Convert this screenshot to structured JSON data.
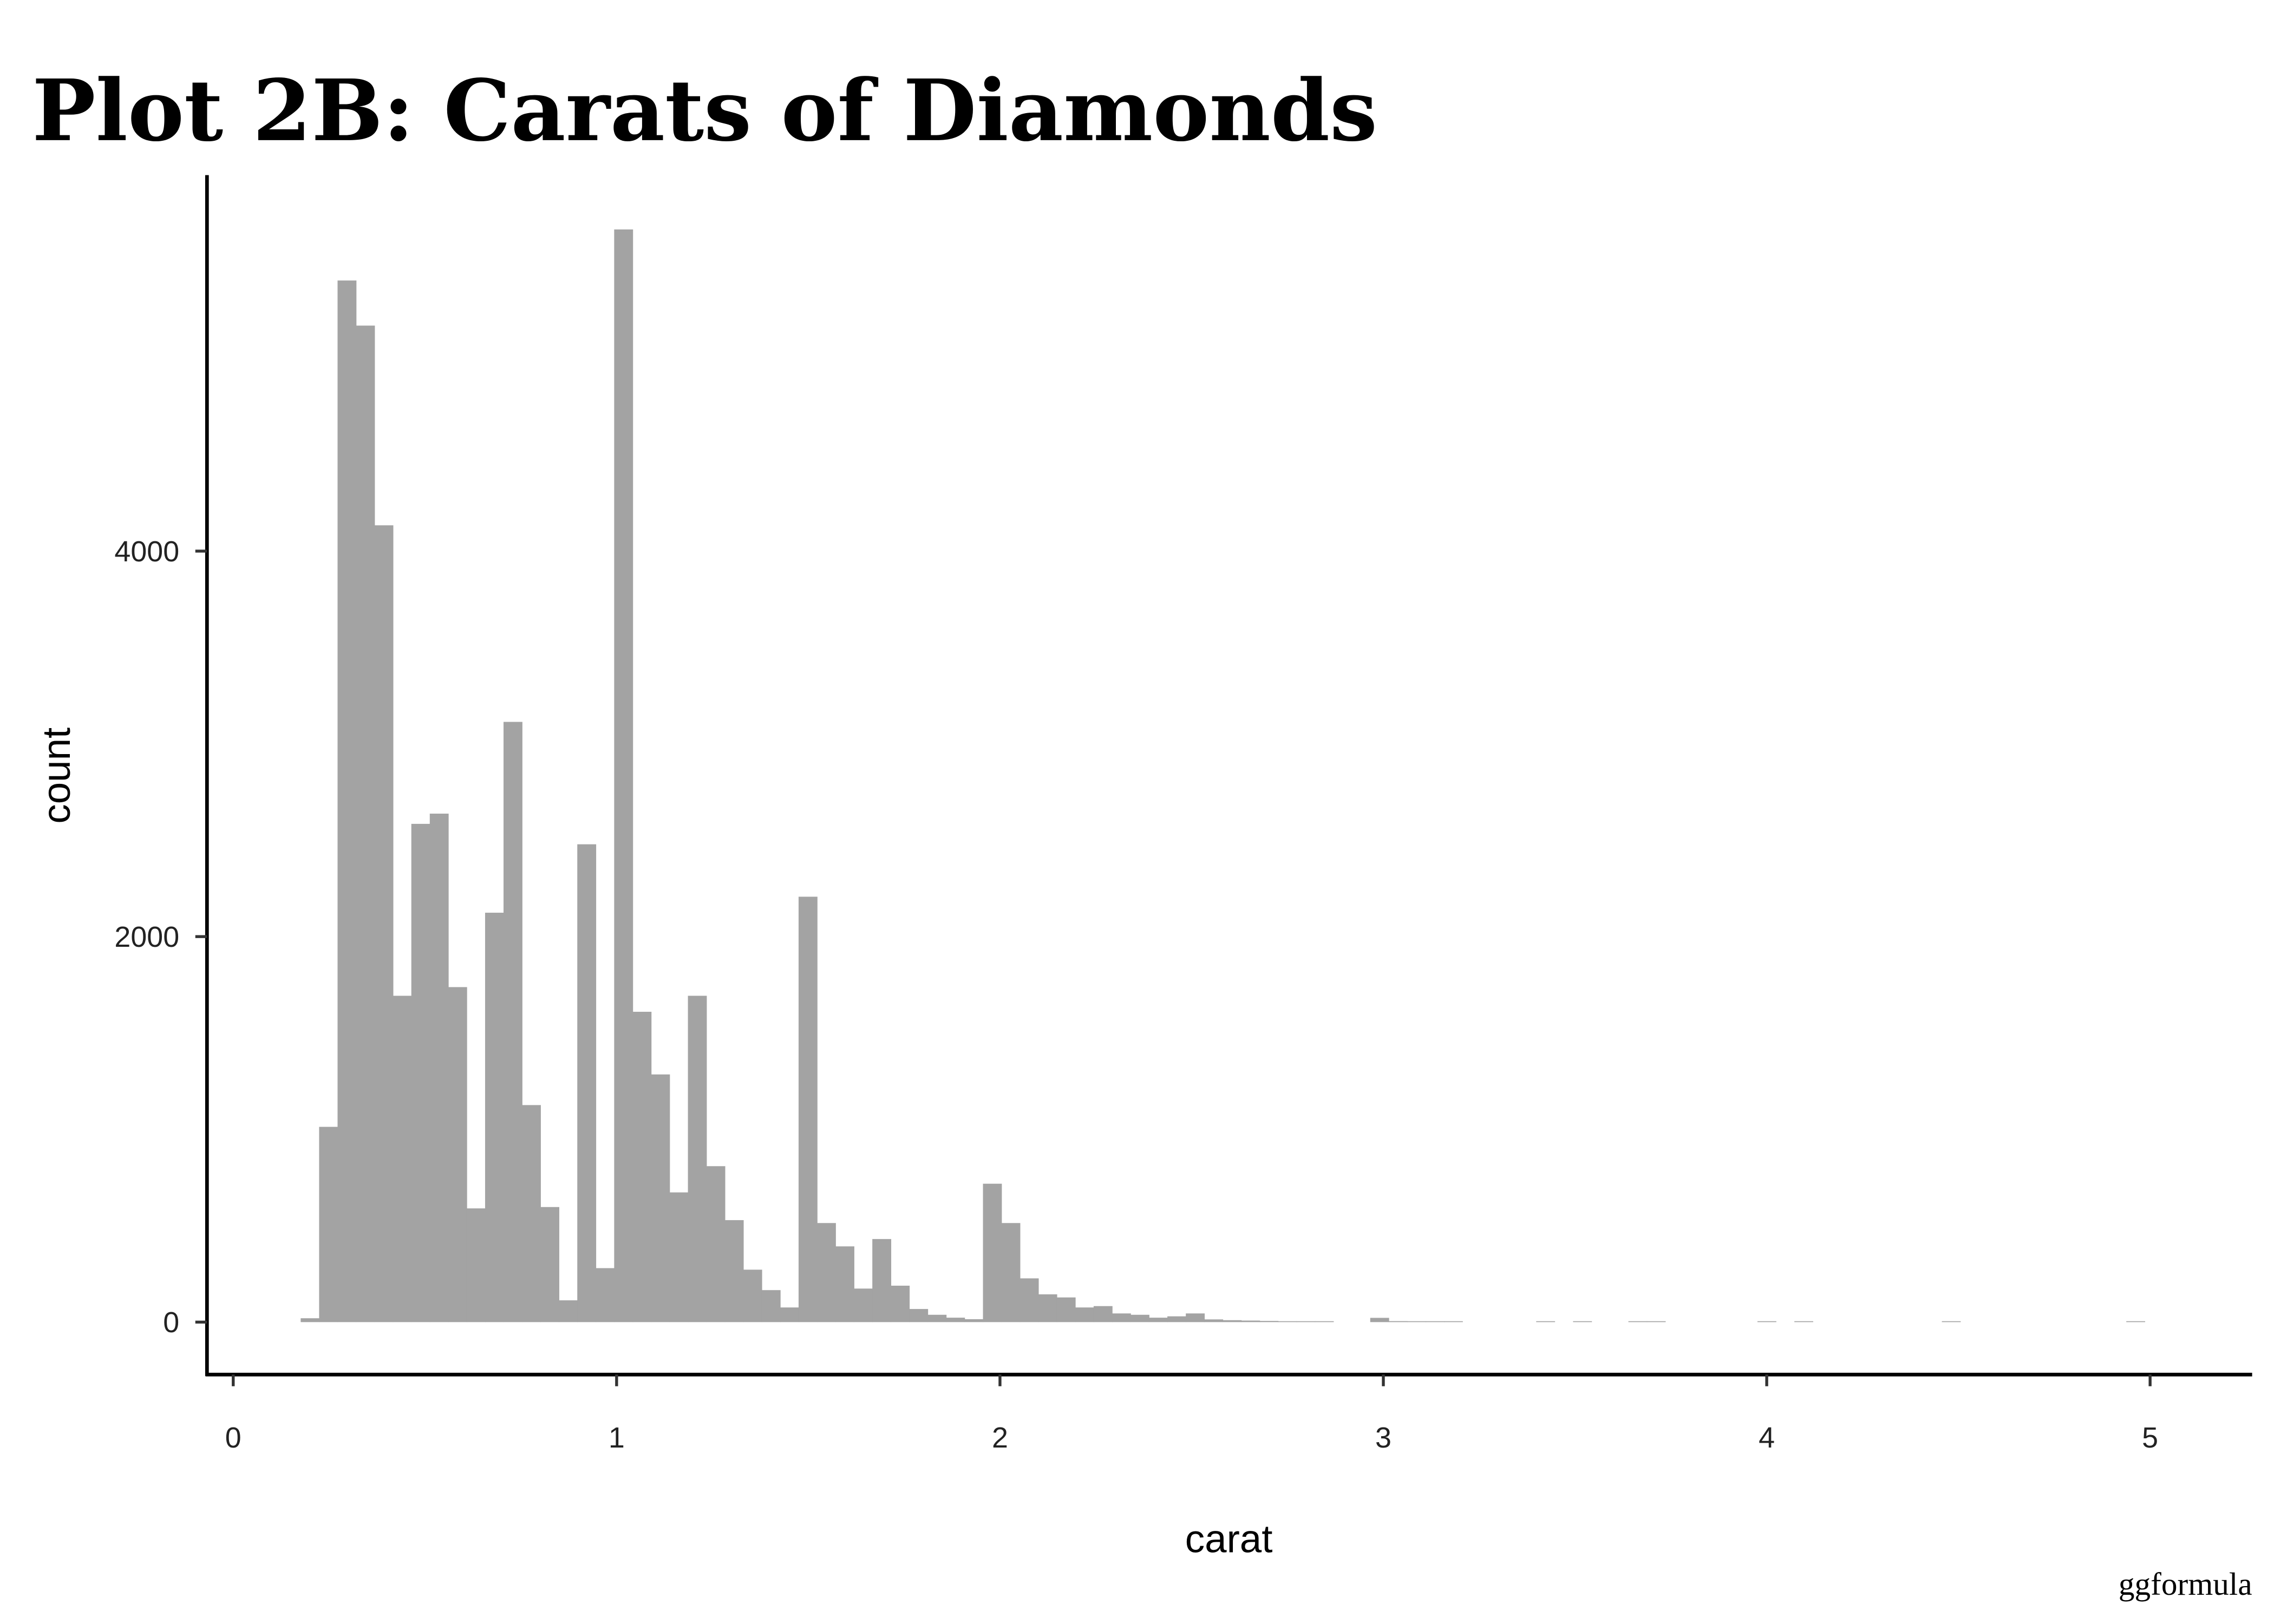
{
  "chart_data": {
    "type": "bar",
    "subtype": "histogram",
    "title": "Plot 2B: Carats of Diamonds",
    "xlabel": "carat",
    "ylabel": "count",
    "caption": "ggformula",
    "bins": 100,
    "bin_first_center": 0.2,
    "binwidth": 0.0481,
    "counts": [
      20,
      1013,
      5404,
      5170,
      4134,
      1693,
      2585,
      2638,
      1738,
      590,
      2124,
      3114,
      1126,
      597,
      113,
      2479,
      280,
      5669,
      1610,
      1285,
      673,
      1693,
      809,
      529,
      272,
      166,
      76,
      2207,
      514,
      393,
      174,
      431,
      189,
      68,
      38,
      23,
      15,
      718,
      514,
      227,
      144,
      128,
      76,
      83,
      45,
      38,
      23,
      30,
      45,
      14,
      10,
      8,
      6,
      4,
      3,
      1,
      0,
      0,
      22,
      5,
      2,
      1,
      2,
      0,
      0,
      0,
      0,
      1,
      0,
      1,
      0,
      0,
      1,
      1,
      0,
      0,
      0,
      0,
      0,
      1,
      0,
      1,
      0,
      0,
      0,
      0,
      0,
      0,
      0,
      1,
      0,
      0,
      0,
      0,
      0,
      0,
      0,
      0,
      0,
      1
    ],
    "xlim": [
      0,
      5.2
    ],
    "ylim": [
      0,
      5700
    ],
    "x_ticks": [
      "0",
      "1",
      "2",
      "3",
      "4",
      "5"
    ],
    "y_ticks": [
      "0",
      "2000",
      "4000"
    ],
    "bar_color": "#a3a3a3",
    "grid": false,
    "legend": "none"
  }
}
